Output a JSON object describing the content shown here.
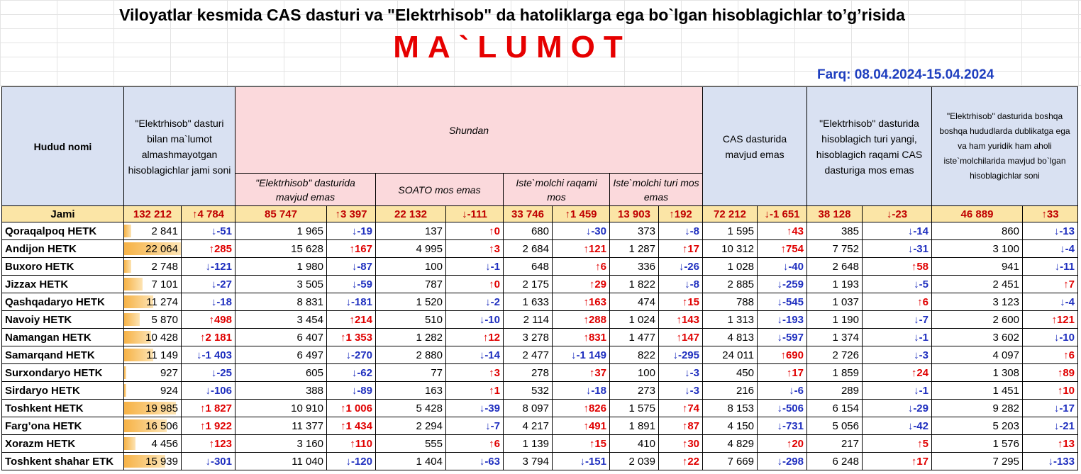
{
  "header": {
    "title": "Viloyatlar kesmida CAS dasturi va \"Elektrhisob\" da hatoliklarga ega bo`lgan hisoblagichlar to’g’risida",
    "subtitle": "MA`LUMOT",
    "date_range": "Farq: 08.04.2024-15.04.2024"
  },
  "columns": {
    "region": "Hudud nomi",
    "total": "\"Elektrhisob\" dasturi bilan ma`lumot almashmayotgan hisoblagichlar jami soni",
    "shundan": "Shundan",
    "not_in_elektrhisob": "\"Elektrhisob\" dasturida mavjud emas",
    "soato": "SOATO mos emas",
    "consumer_number": "Iste`molchi raqami mos",
    "consumer_type": "Iste`molchi turi mos emas",
    "cas_missing": "CAS dasturida mavjud emas",
    "meter_type": "\"Elektrhisob\" dasturida hisoblagich turi yangi, hisoblagich raqami CAS dasturiga mos emas",
    "duplicates": "\"Elektrhisob\" dasturida boshqa boshqa hududlarda dublikatga ega va ham yuridik ham aholi iste`molchilarida mavjud bo`lgan hisoblagichlar soni"
  },
  "total_row": {
    "label": "Jami",
    "cells": [
      "132 212",
      "↑4 784",
      "85 747",
      "↑3 397",
      "22 132",
      "↓-111",
      "33 746",
      "↑1 459",
      "13 903",
      "↑192",
      "72 212",
      "↓-1 651",
      "38 128",
      "↓-23",
      "46 889",
      "↑33"
    ]
  },
  "rows": [
    {
      "name": "Qoraqalpoq HETK",
      "bar": 0.13,
      "cells": [
        "2 841",
        "↓-51",
        "1 965",
        "↓-19",
        "137",
        "↑0",
        "680",
        "↓-30",
        "373",
        "↓-8",
        "1 595",
        "↑43",
        "385",
        "↓-14",
        "860",
        "↓-13"
      ]
    },
    {
      "name": "Andijon HETK",
      "bar": 1.0,
      "cells": [
        "22 064",
        "↑285",
        "15 628",
        "↑167",
        "4 995",
        "↑3",
        "2 684",
        "↑121",
        "1 287",
        "↑17",
        "10 312",
        "↑754",
        "7 752",
        "↓-31",
        "3 100",
        "↓-4"
      ]
    },
    {
      "name": "Buxoro HETK",
      "bar": 0.12,
      "cells": [
        "2 748",
        "↓-121",
        "1 980",
        "↓-87",
        "100",
        "↓-1",
        "648",
        "↑6",
        "336",
        "↓-26",
        "1 028",
        "↓-40",
        "2 648",
        "↑58",
        "941",
        "↓-11"
      ]
    },
    {
      "name": "Jizzax HETK",
      "bar": 0.32,
      "cells": [
        "7 101",
        "↓-27",
        "3 505",
        "↓-59",
        "787",
        "↑0",
        "2 175",
        "↑29",
        "1 822",
        "↓-8",
        "2 885",
        "↓-259",
        "1 193",
        "↓-5",
        "2 451",
        "↑7"
      ]
    },
    {
      "name": "Qashqadaryo HETK",
      "bar": 0.51,
      "cells": [
        "11 274",
        "↓-18",
        "8 831",
        "↓-181",
        "1 520",
        "↓-2",
        "1 633",
        "↑163",
        "474",
        "↑15",
        "788",
        "↓-545",
        "1 037",
        "↑6",
        "3 123",
        "↓-4"
      ]
    },
    {
      "name": "Navoiy HETK",
      "bar": 0.27,
      "cells": [
        "5 870",
        "↑498",
        "3 454",
        "↑214",
        "510",
        "↓-10",
        "2 114",
        "↑288",
        "1 024",
        "↑143",
        "1 313",
        "↓-193",
        "1 190",
        "↓-7",
        "2 600",
        "↑121"
      ]
    },
    {
      "name": "Namangan HETK",
      "bar": 0.47,
      "cells": [
        "10 428",
        "↑2 181",
        "6 407",
        "↑1 353",
        "1 282",
        "↑12",
        "3 278",
        "↑831",
        "1 477",
        "↑147",
        "4 813",
        "↓-597",
        "1 374",
        "↓-1",
        "3 602",
        "↓-10"
      ]
    },
    {
      "name": "Samarqand HETK",
      "bar": 0.51,
      "cells": [
        "11 149",
        "↓-1 403",
        "6 497",
        "↓-270",
        "2 880",
        "↓-14",
        "2 477",
        "↓-1 149",
        "822",
        "↓-295",
        "24 011",
        "↑690",
        "2 726",
        "↓-3",
        "4 097",
        "↑6"
      ]
    },
    {
      "name": "Surxondaryo HETK",
      "bar": 0.04,
      "cells": [
        "927",
        "↓-25",
        "605",
        "↓-62",
        "77",
        "↑3",
        "278",
        "↑37",
        "100",
        "↓-3",
        "450",
        "↑17",
        "1 859",
        "↑24",
        "1 308",
        "↑89"
      ]
    },
    {
      "name": "Sirdaryo HETK",
      "bar": 0.04,
      "cells": [
        "924",
        "↓-106",
        "388",
        "↓-89",
        "163",
        "↑1",
        "532",
        "↓-18",
        "273",
        "↓-3",
        "216",
        "↓-6",
        "289",
        "↓-1",
        "1 451",
        "↑10"
      ]
    },
    {
      "name": "Toshkent HETK",
      "bar": 0.91,
      "cells": [
        "19 985",
        "↑1 827",
        "10 910",
        "↑1 006",
        "5 428",
        "↓-39",
        "8 097",
        "↑826",
        "1 575",
        "↑74",
        "8 153",
        "↓-506",
        "6 154",
        "↓-29",
        "9 282",
        "↓-17"
      ]
    },
    {
      "name": "Farg’ona HETK",
      "bar": 0.75,
      "cells": [
        "16 506",
        "↑1 922",
        "11 377",
        "↑1 434",
        "2 294",
        "↓-7",
        "4 217",
        "↑491",
        "1 891",
        "↑87",
        "4 150",
        "↓-731",
        "5 056",
        "↓-42",
        "5 203",
        "↓-21"
      ]
    },
    {
      "name": "Xorazm HETK",
      "bar": 0.2,
      "cells": [
        "4 456",
        "↑123",
        "3 160",
        "↑110",
        "555",
        "↑6",
        "1 139",
        "↑15",
        "410",
        "↑30",
        "4 829",
        "↑20",
        "217",
        "↑5",
        "1 576",
        "↑13"
      ]
    },
    {
      "name": "Toshkent shahar ETK",
      "bar": 0.72,
      "cells": [
        "15 939",
        "↓-301",
        "11 040",
        "↓-120",
        "1 404",
        "↓-63",
        "3 794",
        "↓-151",
        "2 039",
        "↑22",
        "7 669",
        "↓-298",
        "6 248",
        "↑17",
        "7 295",
        "↓-133"
      ]
    }
  ],
  "colors": {
    "up": "#e00000",
    "down": "#1f2fbf",
    "header_bg": "#d9e1f2",
    "pink_bg": "#fbd9dc",
    "total_bg": "#fbe5a6",
    "bar": "#f6b246"
  }
}
